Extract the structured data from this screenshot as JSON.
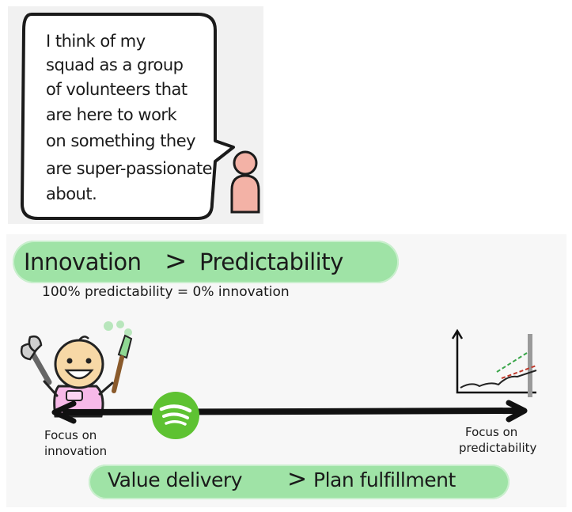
{
  "speech": {
    "lines": [
      "I think of my",
      "squad as a group",
      "of volunteers that",
      "are here to work",
      "on something they",
      "are super-passionate",
      "about."
    ]
  },
  "innovation_banner": {
    "left": "Innovation",
    "symbol": ">",
    "right": "Predictability"
  },
  "equation": "100% predictability = 0% innovation",
  "spectrum": {
    "left_label_1": "Focus on",
    "left_label_2": "innovation",
    "right_label_1": "Focus on",
    "right_label_2": "predictability"
  },
  "value_banner": {
    "left": "Value delivery",
    "symbol": ">",
    "right": "Plan fulfillment"
  },
  "colors": {
    "banner_green": "#9fe3a6",
    "spotify_green": "#5ec232",
    "person_pink": "#f3b2a6",
    "baby_pink": "#f7b9e8"
  },
  "icons": [
    "speech-bubble-icon",
    "person-icon",
    "baby-icon",
    "wrench-icon",
    "paintbrush-icon",
    "spotify-logo-icon",
    "chart-icon",
    "double-arrow-icon"
  ]
}
